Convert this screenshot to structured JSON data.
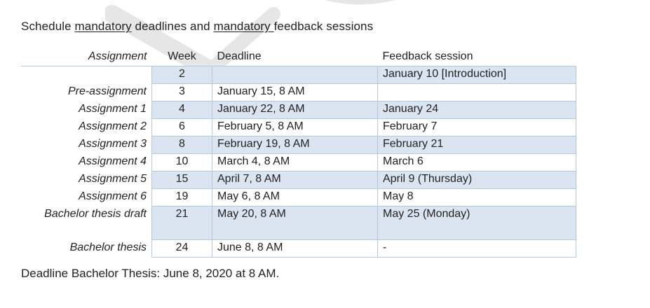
{
  "heading": {
    "part1": "Schedule ",
    "mandatory1": "mandatory",
    "part2": " deadlines and ",
    "mandatory2": "mandatory ",
    "part3": "feedback sessions"
  },
  "table": {
    "headers": {
      "assignment": "Assignment",
      "week": "Week",
      "deadline": "Deadline",
      "feedback": "Feedback session"
    },
    "rows": [
      {
        "assignment": "",
        "week": "2",
        "deadline": "",
        "feedback": "January 10 [Introduction]"
      },
      {
        "assignment": "Pre-assignment",
        "week": "3",
        "deadline": "January 15, 8 AM",
        "feedback": ""
      },
      {
        "assignment": "Assignment 1",
        "week": "4",
        "deadline": "January 22, 8 AM",
        "feedback": "January 24"
      },
      {
        "assignment": "Assignment 2",
        "week": "6",
        "deadline": "February 5, 8 AM",
        "feedback": "February 7"
      },
      {
        "assignment": "Assignment 3",
        "week": "8",
        "deadline": "February 19, 8 AM",
        "feedback": "February 21"
      },
      {
        "assignment": "Assignment 4",
        "week": "10",
        "deadline": "March 4, 8 AM",
        "feedback": "March 6"
      },
      {
        "assignment": "Assignment 5",
        "week": "15",
        "deadline": "April 7, 8 AM",
        "feedback": "April 9 (Thursday)"
      },
      {
        "assignment": "Assignment 6",
        "week": "19",
        "deadline": "May 6, 8 AM",
        "feedback": "May 8"
      },
      {
        "assignment": "Bachelor thesis draft",
        "week": "21",
        "deadline": "May 20, 8 AM",
        "feedback": "May 25 (Monday)"
      },
      {
        "assignment": "Bachelor thesis",
        "week": "24",
        "deadline": "June 8, 8 AM",
        "feedback": "-"
      }
    ]
  },
  "footer": "Deadline Bachelor Thesis: June 8, 2020 at 8 AM.",
  "colors": {
    "shade": "#dbe5f1",
    "border": "#b6c8dc"
  }
}
